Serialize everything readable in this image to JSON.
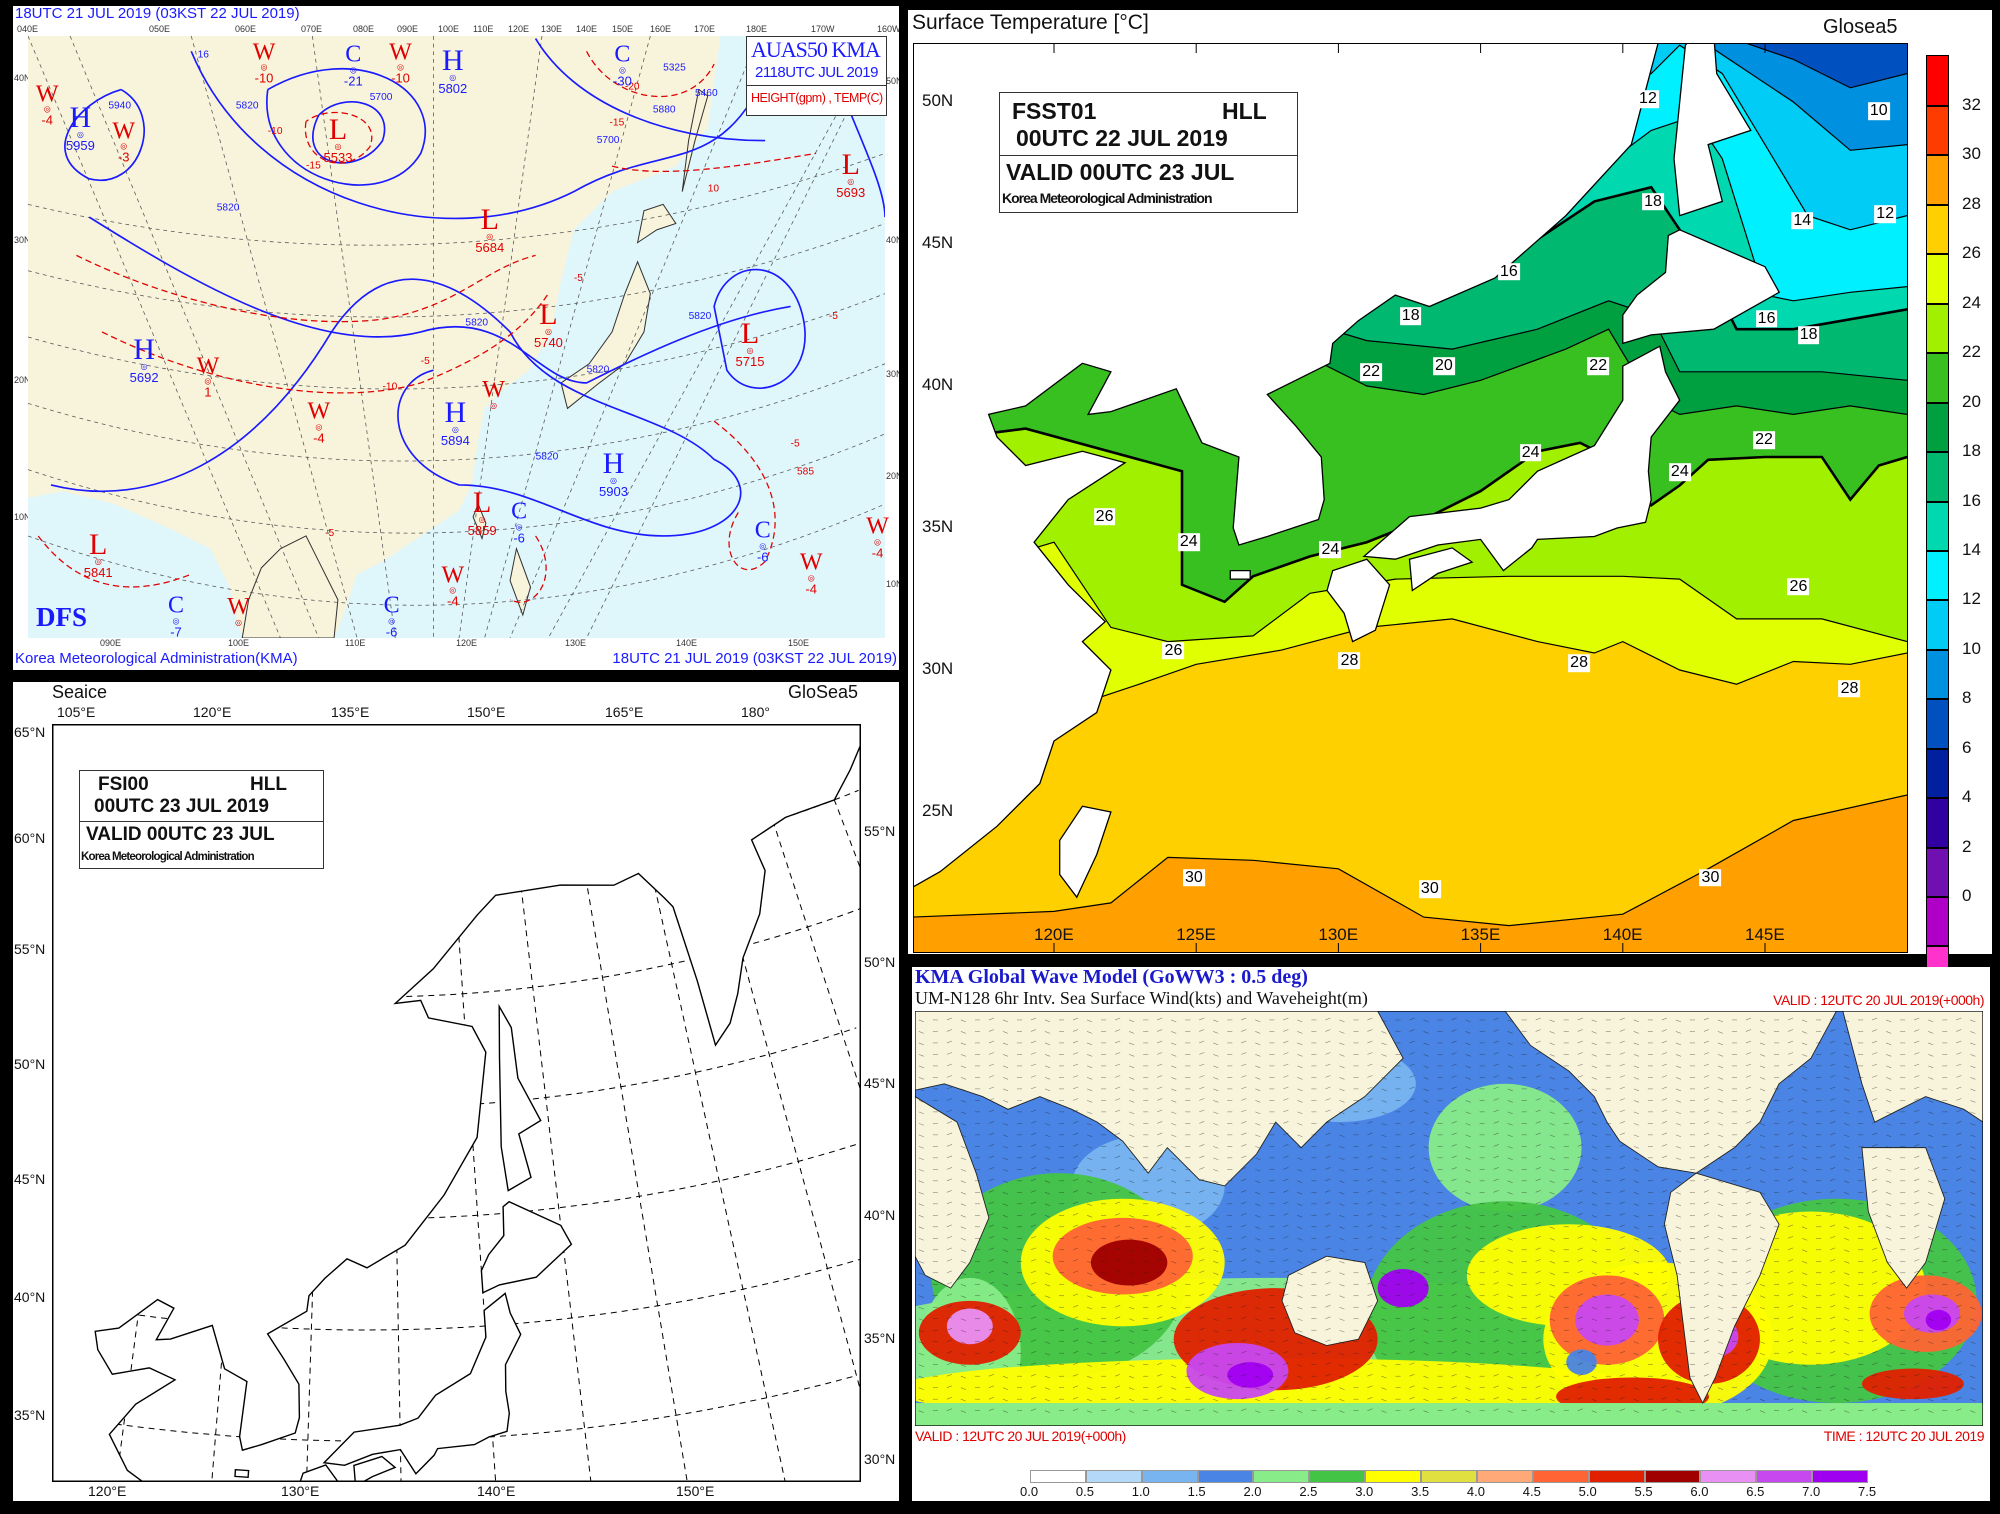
{
  "weather_chart": {
    "header_time": "18UTC 21 JUL 2019 (03KST 22 JUL 2019)",
    "legend_title": "AUAS50 KMA",
    "legend_time": "2118UTC JUL 2019",
    "legend_units": "HEIGHT(gpm) , TEMP(C)",
    "logo": "DFS",
    "footer_left": "Korea Meteorological Administration(KMA)",
    "footer_right": "18UTC 21 JUL 2019 (03KST 22 JUL 2019)",
    "top_lon_labels": [
      "040E",
      "050E",
      "060E",
      "070E",
      "080E",
      "090E",
      "100E",
      "110E",
      "120E",
      "130E",
      "140E",
      "150E",
      "160E",
      "170E",
      "180E",
      "170W",
      "160W"
    ],
    "bottom_lon_labels": [
      "090E",
      "100E",
      "110E",
      "120E",
      "130E",
      "140E",
      "150E"
    ],
    "left_lat_labels": [
      "40N",
      "30N",
      "20N",
      "10N"
    ],
    "right_lat_labels": [
      "50N",
      "40N",
      "30N",
      "20N",
      "10N"
    ],
    "colors": {
      "height_contour": "#1a1aff",
      "temp_contour": "#e00000",
      "land": "#f8f4dc",
      "sea": "#dff6fb"
    },
    "markers": [
      {
        "symbol": "W",
        "value": "-4",
        "kind": "warm"
      },
      {
        "symbol": "H",
        "value": "5959",
        "kind": "high"
      },
      {
        "symbol": "W",
        "value": "-3",
        "kind": "warm"
      },
      {
        "symbol": "W",
        "value": "-10",
        "kind": "warm"
      },
      {
        "symbol": "C",
        "value": "-21",
        "kind": "cold"
      },
      {
        "symbol": "W",
        "value": "-10",
        "kind": "warm"
      },
      {
        "symbol": "H",
        "value": "5802",
        "kind": "high"
      },
      {
        "symbol": "L",
        "value": "5533",
        "kind": "low"
      },
      {
        "symbol": "C",
        "value": "-30",
        "kind": "cold"
      },
      {
        "symbol": "L",
        "value": "5684",
        "kind": "low"
      },
      {
        "symbol": "L",
        "value": "5740",
        "kind": "low"
      },
      {
        "symbol": "L",
        "value": "5693",
        "kind": "low"
      },
      {
        "symbol": "L",
        "value": "5715",
        "kind": "low"
      },
      {
        "symbol": "H",
        "value": "5692",
        "kind": "high"
      },
      {
        "symbol": "W",
        "value": "1",
        "kind": "warm"
      },
      {
        "symbol": "W",
        "value": "-4",
        "kind": "warm"
      },
      {
        "symbol": "H",
        "value": "5894",
        "kind": "high"
      },
      {
        "symbol": "W",
        "value": "",
        "kind": "warm"
      },
      {
        "symbol": "H",
        "value": "5903",
        "kind": "high"
      },
      {
        "symbol": "L",
        "value": "5859",
        "kind": "low"
      },
      {
        "symbol": "C",
        "value": "-6",
        "kind": "cold"
      },
      {
        "symbol": "C",
        "value": "-6",
        "kind": "cold"
      },
      {
        "symbol": "W",
        "value": "-4",
        "kind": "warm"
      },
      {
        "symbol": "W",
        "value": "-4",
        "kind": "warm"
      },
      {
        "symbol": "L",
        "value": "5841",
        "kind": "low"
      },
      {
        "symbol": "W",
        "value": "-4",
        "kind": "warm"
      },
      {
        "symbol": "C",
        "value": "-6",
        "kind": "cold"
      },
      {
        "symbol": "C",
        "value": "-7",
        "kind": "cold"
      },
      {
        "symbol": "W",
        "value": "",
        "kind": "warm"
      }
    ],
    "contour_labels": [
      "16",
      "5700",
      "5940",
      "5820",
      "-10",
      "-15",
      "5325",
      "5460",
      "5880",
      "-20",
      "-15",
      "5700",
      "-10",
      "10",
      "5820",
      "5820",
      "5820",
      "5820",
      "-5",
      "-5",
      "-5",
      "-5",
      "-5",
      "585",
      "5820"
    ]
  },
  "sst_map": {
    "title": "Surface Temperature [°C]",
    "model": "Glosea5",
    "info": {
      "product": "FSST01",
      "grid": "HLL",
      "init": "00UTC 22 JUL 2019",
      "valid": "VALID 00UTC 23 JUL",
      "agency": "Korea Meteorological Administration"
    },
    "lat_labels": [
      "50N",
      "45N",
      "40N",
      "35N",
      "30N",
      "25N"
    ],
    "lon_labels": [
      "120E",
      "125E",
      "130E",
      "135E",
      "140E",
      "145E"
    ],
    "colorbar": {
      "labels": [
        "0",
        "2",
        "4",
        "6",
        "8",
        "10",
        "12",
        "14",
        "16",
        "18",
        "20",
        "22",
        "24",
        "26",
        "28",
        "30",
        "32"
      ],
      "colors": [
        "#ff33cc",
        "#b000c8",
        "#7010b0",
        "#3000a0",
        "#0020a0",
        "#0050c0",
        "#0090e0",
        "#00ccf5",
        "#00f0ff",
        "#00d8b0",
        "#00b870",
        "#00a040",
        "#38c020",
        "#a0f000",
        "#e0ff00",
        "#ffd000",
        "#ffa000",
        "#ff3c00",
        "#ff0000"
      ]
    },
    "contour_labels": [
      "12",
      "10",
      "18",
      "14",
      "12",
      "16",
      "18",
      "16",
      "18",
      "20",
      "22",
      "22",
      "22",
      "24",
      "24",
      "26",
      "24",
      "24",
      "26",
      "26",
      "28",
      "28",
      "28",
      "30",
      "30",
      "30"
    ]
  },
  "seaice_map": {
    "title": "Seaice",
    "model": "GloSea5",
    "info": {
      "product": "FSI00",
      "grid": "HLL",
      "init": "00UTC 23 JUL 2019",
      "valid": "VALID 00UTC 23 JUL",
      "agency": "Korea Meteorological Administration"
    },
    "top_lon_labels": [
      "105°E",
      "120°E",
      "135°E",
      "150°E",
      "165°E",
      "180°"
    ],
    "bottom_lon_labels": [
      "120°E",
      "130°E",
      "140°E",
      "150°E"
    ],
    "left_lat_labels": [
      "65°N",
      "60°N",
      "55°N",
      "50°N",
      "45°N",
      "40°N",
      "35°N"
    ],
    "right_lat_labels": [
      "55°N",
      "50°N",
      "45°N",
      "40°N",
      "35°N",
      "30°N"
    ]
  },
  "wave_map": {
    "title": "KMA  Global Wave Model (GoWW3 : 0.5 deg)",
    "subtitle": "UM-N128  6hr Intv. Sea Surface Wind(kts) and Waveheight(m)",
    "valid_top": "VALID : 12UTC 20 JUL 2019(+000h)",
    "valid_bottom": "VALID : 12UTC 20 JUL 2019(+000h)",
    "time": "TIME : 12UTC 20 JUL 2019",
    "colorbar": {
      "labels": [
        "0.0",
        "0.5",
        "1.0",
        "1.5",
        "2.0",
        "2.5",
        "3.0",
        "3.5",
        "4.0",
        "4.5",
        "5.0",
        "5.5",
        "6.0",
        "6.5",
        "7.0",
        "7.5"
      ],
      "colors": [
        "#ffffff",
        "#b4d8f8",
        "#78b4f0",
        "#4a84e4",
        "#88ec88",
        "#44c444",
        "#ffff00",
        "#e0e040",
        "#ffa878",
        "#ff6434",
        "#e02000",
        "#a00000",
        "#e890f4",
        "#c848f0",
        "#a000f0"
      ]
    }
  }
}
